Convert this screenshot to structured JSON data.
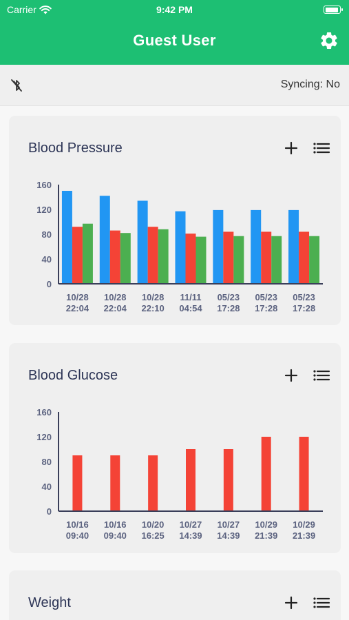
{
  "status_bar": {
    "carrier": "Carrier",
    "time": "9:42 PM"
  },
  "header": {
    "title": "Guest User"
  },
  "sync": {
    "status_text": "Syncing: No"
  },
  "colors": {
    "header_green": "#1dbf73",
    "systolic_blue": "#2196f3",
    "diastolic_red": "#f44336",
    "pulse_green": "#4caf50",
    "axis_text": "#5c6380"
  },
  "icons": {
    "settings": "gear-icon",
    "bluetooth": "bluetooth-icon",
    "add": "plus-icon",
    "list": "list-icon"
  },
  "cards": {
    "blood_pressure": {
      "title": "Blood Pressure"
    },
    "blood_glucose": {
      "title": "Blood Glucose"
    },
    "weight": {
      "title": "Weight"
    }
  },
  "chart_data": [
    {
      "type": "bar",
      "categories": [
        "10/28 22:04",
        "10/28 22:04",
        "10/28 22:10",
        "11/11 04:54",
        "05/23 17:28",
        "05/23 17:28",
        "05/23 17:28"
      ],
      "ylim": [
        0,
        160
      ],
      "yticks": [
        "0",
        "40",
        "80",
        "120",
        "160"
      ],
      "series": [
        {
          "color": "#2196f3",
          "values": [
            150,
            142,
            134,
            117,
            119,
            119,
            119
          ]
        },
        {
          "color": "#f44336",
          "values": [
            92,
            86,
            92,
            81,
            84,
            84,
            84
          ]
        },
        {
          "color": "#4caf50",
          "values": [
            97,
            82,
            88,
            76,
            77,
            77,
            77
          ]
        }
      ],
      "grid": false,
      "legend": "none"
    },
    {
      "type": "bar",
      "categories": [
        "10/16 09:40",
        "10/16 09:40",
        "10/20 16:25",
        "10/27 14:39",
        "10/27 14:39",
        "10/29 21:39",
        "10/29 21:39"
      ],
      "ylim": [
        0,
        160
      ],
      "yticks": [
        "0",
        "40",
        "80",
        "120",
        "160"
      ],
      "series": [
        {
          "color": "#f44336",
          "values": [
            90,
            90,
            90,
            100,
            100,
            120,
            120
          ]
        }
      ],
      "grid": false,
      "legend": "none"
    }
  ]
}
